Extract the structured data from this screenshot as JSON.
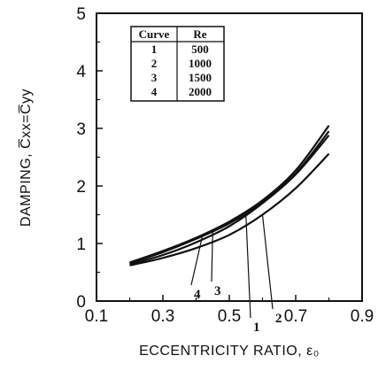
{
  "chart_data": {
    "type": "line",
    "title": "",
    "xlabel": "ECCENTRICITY RATIO, ε₀",
    "ylabel": "DAMPING, C̅xx=C̅yy",
    "xlim": [
      0.1,
      0.9
    ],
    "ylim": [
      0,
      5
    ],
    "xticks": [
      "0.1",
      "0.3",
      "0.5",
      "0.7",
      "0.9"
    ],
    "yticks": [
      "0",
      "1",
      "2",
      "3",
      "4",
      "5"
    ],
    "grid": false,
    "legend": {
      "placement": "top-left",
      "headers": [
        "Curve",
        "Re"
      ],
      "rows": [
        [
          "1",
          "500"
        ],
        [
          "2",
          "1000"
        ],
        [
          "3",
          "1500"
        ],
        [
          "4",
          "2000"
        ]
      ]
    },
    "series": [
      {
        "label": "1",
        "x": [
          0.2,
          0.3,
          0.4,
          0.5,
          0.6,
          0.7,
          0.8
        ],
        "y": [
          0.64,
          0.8,
          1.02,
          1.3,
          1.7,
          2.2,
          2.88
        ]
      },
      {
        "label": "2",
        "x": [
          0.2,
          0.3,
          0.4,
          0.5,
          0.6,
          0.7,
          0.8
        ],
        "y": [
          0.62,
          0.75,
          0.92,
          1.15,
          1.5,
          1.96,
          2.56
        ]
      },
      {
        "label": "3",
        "x": [
          0.2,
          0.3,
          0.4,
          0.5,
          0.6,
          0.7,
          0.8
        ],
        "y": [
          0.66,
          0.85,
          1.08,
          1.35,
          1.72,
          2.22,
          2.95
        ]
      },
      {
        "label": "4",
        "x": [
          0.2,
          0.3,
          0.4,
          0.5,
          0.6,
          0.7,
          0.8
        ],
        "y": [
          0.67,
          0.87,
          1.1,
          1.38,
          1.75,
          2.27,
          3.05
        ]
      }
    ]
  }
}
